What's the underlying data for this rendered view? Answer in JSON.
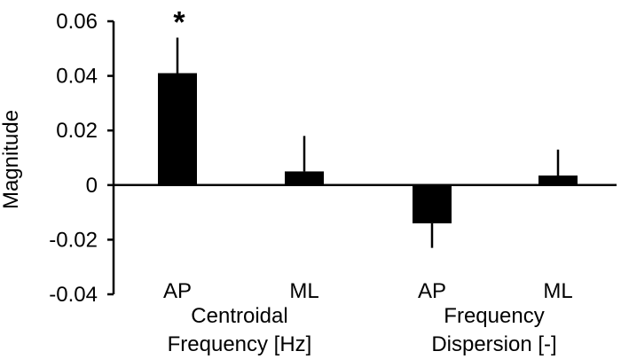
{
  "chart_data": {
    "type": "bar",
    "ylabel": "Magnitude",
    "ylim": [
      -0.04,
      0.06
    ],
    "yticks": [
      0.06,
      0.04,
      0.02,
      0,
      -0.02,
      -0.04
    ],
    "ytick_labels": [
      "0.06",
      "0.04",
      "0.02",
      "0",
      "-0.02",
      "-0.04"
    ],
    "bar_color": "#000000",
    "grid": false,
    "groups": [
      {
        "label_line1": "Centroidal",
        "label_line2": "Frequency [Hz]"
      },
      {
        "label_line1": "Frequency",
        "label_line2": "Dispersion [-]"
      }
    ],
    "bars": [
      {
        "category": "AP",
        "group": 0,
        "value": 0.041,
        "error": 0.013,
        "annotation": "*"
      },
      {
        "category": "ML",
        "group": 0,
        "value": 0.005,
        "error": 0.013,
        "annotation": ""
      },
      {
        "category": "AP",
        "group": 1,
        "value": -0.014,
        "error": 0.009,
        "annotation": ""
      },
      {
        "category": "ML",
        "group": 1,
        "value": 0.0035,
        "error": 0.0095,
        "annotation": ""
      }
    ]
  }
}
